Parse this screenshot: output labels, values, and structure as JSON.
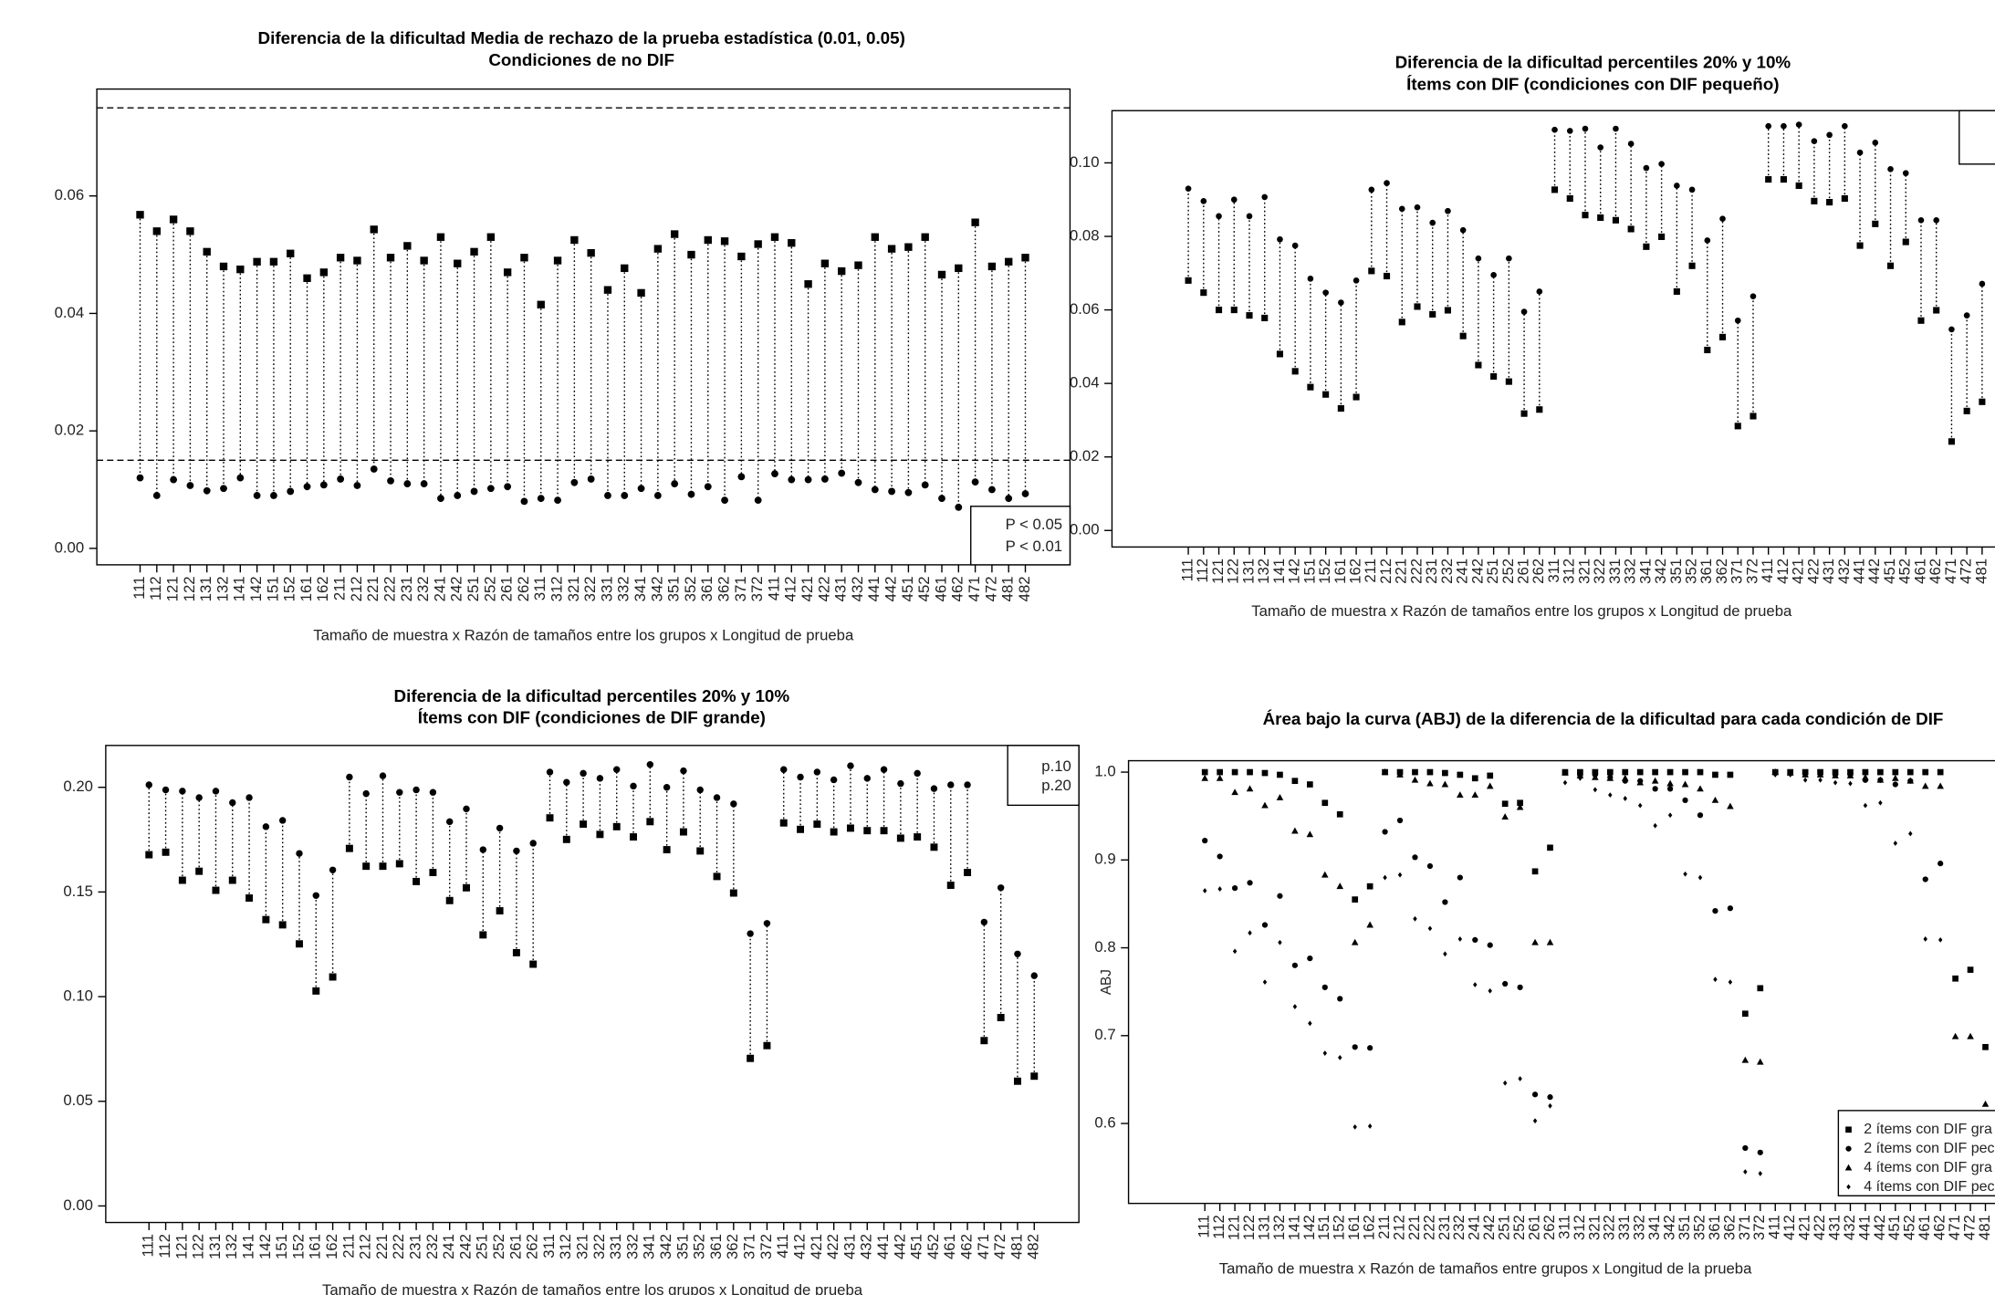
{
  "chart_data": [
    {
      "type": "dumbbell",
      "title": "Diferencia de la dificultad Media de rechazo de la prueba estadística (0.01, 0.05)",
      "subtitle": "Condiciones de no DIF",
      "x_label": "Tamaño de muestra x Razón de tamaños entre los grupos x Longitud de prueba",
      "categories": [
        "111",
        "112",
        "121",
        "122",
        "131",
        "132",
        "141",
        "142",
        "151",
        "152",
        "161",
        "162",
        "211",
        "212",
        "221",
        "222",
        "231",
        "232",
        "241",
        "242",
        "251",
        "252",
        "261",
        "262",
        "311",
        "312",
        "321",
        "322",
        "331",
        "332",
        "341",
        "342",
        "351",
        "352",
        "361",
        "362",
        "371",
        "372",
        "411",
        "412",
        "421",
        "422",
        "431",
        "432",
        "441",
        "442",
        "451",
        "452",
        "461",
        "462",
        "471",
        "472",
        "481",
        "482"
      ],
      "series": [
        {
          "name": "P < 0.05",
          "color": "#000000",
          "marker": "square",
          "values": [
            0.0568,
            0.054,
            0.056,
            0.054,
            0.0505,
            0.048,
            0.0475,
            0.0488,
            0.0488,
            0.0502,
            0.046,
            0.047,
            0.0495,
            0.049,
            0.0543,
            0.0495,
            0.0515,
            0.049,
            0.053,
            0.0485,
            0.0505,
            0.053,
            0.047,
            0.0495,
            0.0415,
            0.049,
            0.0525,
            0.0503,
            0.044,
            0.0477,
            0.0435,
            0.051,
            0.0535,
            0.05,
            0.0525,
            0.0523,
            0.0497,
            0.0518,
            0.053,
            0.052,
            0.045,
            0.0485,
            0.0472,
            0.0482,
            0.053,
            0.051,
            0.0513,
            0.053,
            0.0466,
            0.0477,
            0.0555,
            0.048,
            0.0488,
            0.0495
          ]
        },
        {
          "name": "P < 0.01",
          "color": "#000000",
          "marker": "circle",
          "values": [
            0.012,
            0.009,
            0.0117,
            0.0107,
            0.0098,
            0.0102,
            0.012,
            0.009,
            0.009,
            0.0097,
            0.0105,
            0.0108,
            0.0118,
            0.0107,
            0.0135,
            0.0115,
            0.011,
            0.011,
            0.0085,
            0.009,
            0.0097,
            0.0102,
            0.0105,
            0.008,
            0.0085,
            0.0082,
            0.0112,
            0.0118,
            0.009,
            0.009,
            0.0102,
            0.009,
            0.011,
            0.0092,
            0.0105,
            0.0082,
            0.0122,
            0.0082,
            0.0127,
            0.0117,
            0.0117,
            0.0118,
            0.0128,
            0.0112,
            0.01,
            0.0097,
            0.0095,
            0.0108,
            0.0085,
            0.007,
            0.0113,
            0.01,
            0.0085,
            0.0093
          ]
        }
      ],
      "ylim": [
        -0.0028,
        0.0782
      ],
      "yticks": [
        {
          "value": 0,
          "label": "0.00"
        },
        {
          "value": 0.02,
          "label": "0.02"
        },
        {
          "value": 0.04,
          "label": "0.04"
        },
        {
          "value": 0.06,
          "label": "0.06"
        }
      ],
      "reference_lines": [
        0.015,
        0.075
      ],
      "legend": "bottom-right"
    },
    {
      "type": "dumbbell",
      "title": "Diferencia de la dificultad  percentiles 20%  y  10%",
      "subtitle": "Ítems con DIF (condiciones con DIF pequeño)",
      "x_label": "Tamaño de muestra x Razón de tamaños entre los grupos x Longitud de prueba",
      "categories": [
        "111",
        "112",
        "121",
        "122",
        "131",
        "132",
        "141",
        "142",
        "151",
        "152",
        "161",
        "162",
        "211",
        "212",
        "221",
        "222",
        "231",
        "232",
        "241",
        "242",
        "251",
        "252",
        "261",
        "262",
        "311",
        "312",
        "321",
        "322",
        "331",
        "332",
        "341",
        "342",
        "351",
        "352",
        "361",
        "362",
        "371",
        "372",
        "411",
        "412",
        "421",
        "422",
        "431",
        "432",
        "441",
        "442",
        "451",
        "452",
        "461",
        "462",
        "471",
        "472",
        "481"
      ],
      "series": [
        {
          "color": "#000000",
          "marker": "square",
          "values": [
            0.068,
            0.0647,
            0.06,
            0.06,
            0.0585,
            0.0578,
            0.048,
            0.0433,
            0.039,
            0.037,
            0.0332,
            0.0363,
            0.0706,
            0.0692,
            0.0567,
            0.0609,
            0.0588,
            0.0599,
            0.0529,
            0.045,
            0.0419,
            0.0405,
            0.0318,
            0.0329,
            0.0927,
            0.0903,
            0.0858,
            0.0851,
            0.0844,
            0.082,
            0.0772,
            0.0799,
            0.065,
            0.072,
            0.0491,
            0.0526,
            0.0284,
            0.0311,
            0.0955,
            0.0955,
            0.0938,
            0.0896,
            0.0893,
            0.0903,
            0.0775,
            0.0834,
            0.072,
            0.0785,
            0.0571,
            0.0599,
            0.0242,
            0.0325,
            0.035
          ]
        },
        {
          "color": "#000000",
          "marker": "circle",
          "values": [
            0.093,
            0.0896,
            0.0855,
            0.09,
            0.0855,
            0.0907,
            0.0792,
            0.0775,
            0.0685,
            0.0647,
            0.062,
            0.068,
            0.0927,
            0.0945,
            0.0875,
            0.0879,
            0.0837,
            0.0869,
            0.0817,
            0.074,
            0.0695,
            0.074,
            0.0595,
            0.065,
            0.109,
            0.1087,
            0.1093,
            0.1042,
            0.1093,
            0.1052,
            0.0986,
            0.0997,
            0.0938,
            0.0927,
            0.0789,
            0.0848,
            0.0571,
            0.0637,
            0.11,
            0.11,
            0.1104,
            0.1059,
            0.1076,
            0.11,
            0.1028,
            0.1055,
            0.0983,
            0.0972,
            0.0844,
            0.0844,
            0.0547,
            0.0585,
            0.0671
          ]
        }
      ],
      "ylim": [
        -0.0045,
        0.1142
      ],
      "yticks": [
        {
          "value": 0,
          "label": "0.00"
        },
        {
          "value": 0.02,
          "label": "0.02"
        },
        {
          "value": 0.04,
          "label": "0.04"
        },
        {
          "value": 0.06,
          "label": "0.06"
        },
        {
          "value": 0.08,
          "label": "0.08"
        },
        {
          "value": 0.1,
          "label": "0.10"
        }
      ],
      "legend": "top-right"
    },
    {
      "type": "dumbbell",
      "title": "Diferencia de la dificultad  percentiles 20%  y  10%",
      "subtitle": "Ítems con DIF (condiciones de DIF grande)",
      "x_label": "Tamaño de muestra x Razón de tamaños entre los grupos x Longitud de prueba",
      "categories": [
        "111",
        "112",
        "121",
        "122",
        "131",
        "132",
        "141",
        "142",
        "151",
        "152",
        "161",
        "162",
        "211",
        "212",
        "221",
        "222",
        "231",
        "232",
        "241",
        "242",
        "251",
        "252",
        "261",
        "262",
        "311",
        "312",
        "321",
        "322",
        "331",
        "332",
        "341",
        "342",
        "351",
        "352",
        "361",
        "362",
        "371",
        "372",
        "411",
        "412",
        "421",
        "422",
        "431",
        "432",
        "441",
        "442",
        "451",
        "452",
        "461",
        "462",
        "471",
        "472",
        "481",
        "482"
      ],
      "series": [
        {
          "name": "p.10",
          "color": "#000000",
          "marker": "square",
          "values": [
            0.1678,
            0.169,
            0.1556,
            0.1599,
            0.1508,
            0.1556,
            0.1471,
            0.1368,
            0.1343,
            0.1252,
            0.1027,
            0.1094,
            0.1708,
            0.1623,
            0.1623,
            0.1635,
            0.155,
            0.1593,
            0.1459,
            0.152,
            0.1295,
            0.141,
            0.121,
            0.1155,
            0.1854,
            0.1751,
            0.1824,
            0.1775,
            0.1812,
            0.1763,
            0.1836,
            0.1702,
            0.1787,
            0.1696,
            0.1574,
            0.1495,
            0.0705,
            0.0766,
            0.183,
            0.1799,
            0.1824,
            0.1787,
            0.1805,
            0.1793,
            0.1793,
            0.1757,
            0.1763,
            0.1714,
            0.1532,
            0.1593,
            0.079,
            0.09,
            0.0596,
            0.062
          ]
        },
        {
          "name": "p.20",
          "color": "#000000",
          "marker": "circle",
          "values": [
            0.2012,
            0.1988,
            0.1982,
            0.1951,
            0.1982,
            0.1927,
            0.1951,
            0.1812,
            0.1842,
            0.1684,
            0.1483,
            0.1605,
            0.2049,
            0.197,
            0.2055,
            0.1976,
            0.1988,
            0.1976,
            0.1836,
            0.1897,
            0.1702,
            0.1805,
            0.1696,
            0.1733,
            0.2073,
            0.2024,
            0.2067,
            0.2043,
            0.2085,
            0.2006,
            0.2109,
            0.2,
            0.2079,
            0.1988,
            0.1951,
            0.1921,
            0.1301,
            0.135,
            0.2085,
            0.2049,
            0.2073,
            0.2036,
            0.2103,
            0.2043,
            0.2085,
            0.2018,
            0.2067,
            0.1994,
            0.2012,
            0.2012,
            0.1356,
            0.152,
            0.1204,
            0.11
          ]
        }
      ],
      "ylim": [
        -0.0079,
        0.22
      ],
      "yticks": [
        {
          "value": 0,
          "label": "0.00"
        },
        {
          "value": 0.05,
          "label": "0.05"
        },
        {
          "value": 0.1,
          "label": "0.10"
        },
        {
          "value": 0.15,
          "label": "0.15"
        },
        {
          "value": 0.2,
          "label": "0.20"
        }
      ],
      "legend": "top-right"
    },
    {
      "type": "scatter",
      "title": "Área bajo la curva (ABJ) de la diferencia de la dificultad para cada condición de DIF",
      "y_label": "ABJ",
      "x_label": "Tamaño de muestra x Razón de tamaños entre grupos x Longitud de la prueba",
      "categories": [
        "111",
        "112",
        "121",
        "122",
        "131",
        "132",
        "141",
        "142",
        "151",
        "152",
        "161",
        "162",
        "211",
        "212",
        "221",
        "222",
        "231",
        "232",
        "241",
        "242",
        "251",
        "252",
        "261",
        "262",
        "311",
        "312",
        "321",
        "322",
        "331",
        "332",
        "341",
        "342",
        "351",
        "352",
        "361",
        "362",
        "371",
        "372",
        "411",
        "412",
        "421",
        "422",
        "431",
        "432",
        "441",
        "442",
        "451",
        "452",
        "461",
        "462",
        "471",
        "472",
        "481"
      ],
      "series": [
        {
          "name": "2 ítems con DIF gra",
          "color": "#000000",
          "marker": "square",
          "values": [
            1,
            1,
            1,
            1,
            0.999,
            0.997,
            0.99,
            0.986,
            0.965,
            0.952,
            0.855,
            0.87,
            1,
            1,
            1,
            1,
            0.999,
            0.997,
            0.993,
            0.996,
            0.964,
            0.965,
            0.887,
            0.914,
            1,
            1,
            1,
            1,
            1,
            1,
            1,
            1,
            1,
            1,
            0.997,
            0.997,
            0.725,
            0.754,
            1,
            1,
            1,
            1,
            1,
            1,
            1,
            1,
            1,
            1,
            1,
            1,
            0.765,
            0.775,
            0.687
          ]
        },
        {
          "name": "2 ítems con DIF pec",
          "color": "#000000",
          "marker": "circle",
          "values": [
            0.922,
            0.904,
            0.868,
            0.874,
            0.826,
            0.859,
            0.78,
            0.788,
            0.755,
            0.742,
            0.687,
            0.686,
            0.932,
            0.945,
            0.903,
            0.893,
            0.852,
            0.88,
            0.809,
            0.803,
            0.759,
            0.755,
            0.633,
            0.63,
            1,
            0.996,
            0.997,
            0.994,
            0.99,
            0.99,
            0.981,
            0.981,
            0.968,
            0.951,
            0.842,
            0.845,
            0.572,
            0.567,
            1,
            1,
            0.999,
            0.999,
            0.997,
            0.997,
            0.991,
            0.991,
            0.986,
            0.99,
            0.878,
            0.896,
            null,
            null,
            null
          ]
        },
        {
          "name": "4 ítems con DIF gra",
          "color": "#000000",
          "marker": "triangle",
          "values": [
            0.993,
            0.993,
            0.977,
            0.981,
            0.962,
            0.971,
            0.933,
            0.929,
            0.883,
            0.87,
            0.806,
            0.826,
            1,
            0.997,
            0.991,
            0.987,
            0.986,
            0.974,
            0.974,
            0.984,
            0.949,
            0.96,
            0.806,
            0.806,
            0.999,
            0.996,
            0.994,
            0.993,
            0.993,
            0.988,
            0.99,
            0.987,
            0.986,
            0.981,
            0.968,
            0.961,
            0.672,
            0.67,
            1,
            0.999,
            0.997,
            0.997,
            0.996,
            0.996,
            0.994,
            0.991,
            0.993,
            0.99,
            0.984,
            0.984,
            0.699,
            0.699,
            0.622
          ]
        },
        {
          "name": "4 ítems con DIF pec",
          "color": "#000000",
          "marker": "diamond",
          "values": [
            0.865,
            0.867,
            0.796,
            0.817,
            0.761,
            0.806,
            0.733,
            0.714,
            0.68,
            0.675,
            0.596,
            0.597,
            0.88,
            0.883,
            0.833,
            0.822,
            0.793,
            0.81,
            0.758,
            0.751,
            0.646,
            0.651,
            0.603,
            0.62,
            0.988,
            0.993,
            0.98,
            0.974,
            0.97,
            0.962,
            0.939,
            0.951,
            0.884,
            0.88,
            0.764,
            0.761,
            0.545,
            0.543,
            0.997,
            0.997,
            0.991,
            0.991,
            0.988,
            0.987,
            0.962,
            0.965,
            0.919,
            0.93,
            0.81,
            0.809,
            null,
            null,
            null
          ]
        }
      ],
      "ylim": [
        0.509,
        1.013
      ],
      "yticks": [
        0.6,
        0.7,
        0.8,
        0.9,
        {
          "value": 1,
          "label": "1.0"
        }
      ],
      "legend": "bottom-right"
    }
  ]
}
